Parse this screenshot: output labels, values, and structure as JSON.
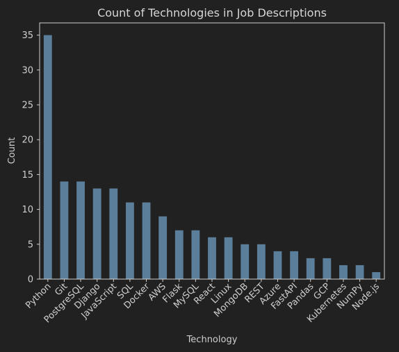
{
  "chart_data": {
    "type": "bar",
    "title": "Count of Technologies in Job Descriptions",
    "xlabel": "Technology",
    "ylabel": "Count",
    "categories": [
      "Python",
      "Git",
      "PostgreSQL",
      "Django",
      "JavaScript",
      "SQL",
      "Docker",
      "AWS",
      "Flask",
      "MySQL",
      "React",
      "Linux",
      "MongoDB",
      "REST",
      "Azure",
      "FastAPI",
      "Pandas",
      "GCP",
      "Kubernetes",
      "NumPy",
      "Node.js"
    ],
    "values": [
      35,
      14,
      14,
      13,
      13,
      11,
      11,
      9,
      7,
      7,
      6,
      6,
      5,
      5,
      4,
      4,
      3,
      3,
      2,
      2,
      1
    ],
    "ylim": [
      0,
      36.75
    ],
    "yticks": [
      0,
      5,
      10,
      15,
      20,
      25,
      30,
      35
    ],
    "grid": false,
    "bar_color": "#5b7f9b",
    "background": "#212121"
  }
}
